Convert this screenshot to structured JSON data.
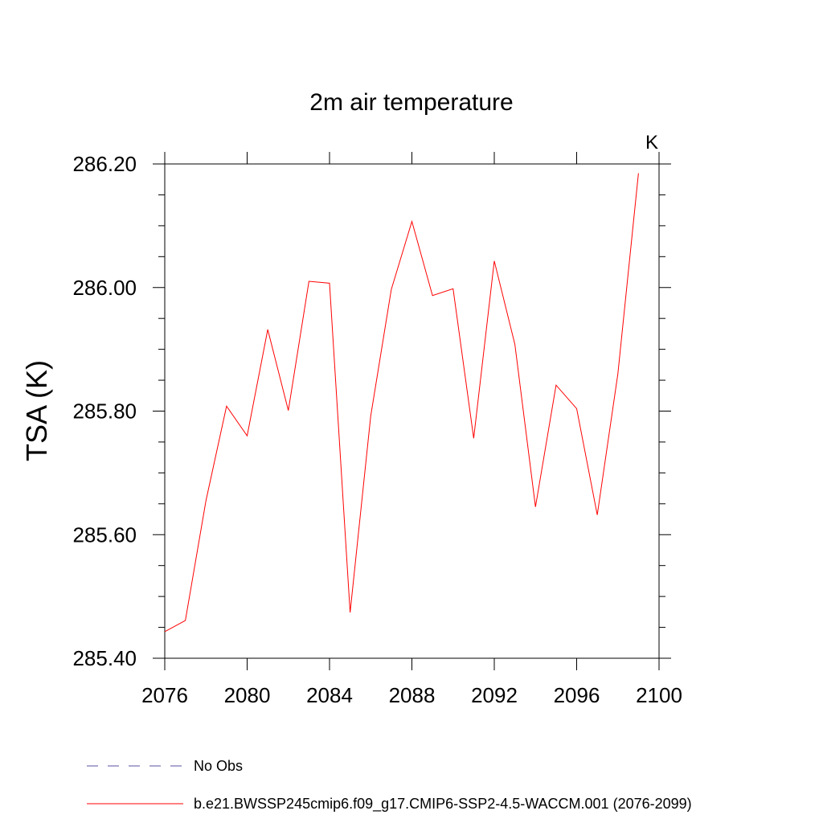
{
  "chart_data": {
    "type": "line",
    "title": "2m air temperature",
    "units_label": "K",
    "ylabel": "TSA  (K)",
    "xlabel": "",
    "xlim": [
      2076,
      2100
    ],
    "ylim": [
      285.4,
      286.2
    ],
    "x_ticks": [
      2076,
      2080,
      2084,
      2088,
      2092,
      2096,
      2100
    ],
    "x_tick_labels": [
      "2076",
      "2080",
      "2084",
      "2088",
      "2092",
      "2096",
      "2100"
    ],
    "y_ticks": [
      285.4,
      285.6,
      285.8,
      286.0,
      286.2
    ],
    "y_tick_labels": [
      "285.40",
      "285.60",
      "285.80",
      "286.00",
      "286.20"
    ],
    "x_minor_step": 1,
    "y_minor_step": 0.05,
    "grid": false,
    "legend_position": "bottom-left",
    "series": [
      {
        "name": "No Obs",
        "style": "dashed",
        "color": "#5a4fa0",
        "x": [],
        "values": []
      },
      {
        "name": "b.e21.BWSSP245cmip6.f09_g17.CMIP6-SSP2-4.5-WACCM.001 (2076-2099)",
        "style": "solid",
        "color": "#ff0000",
        "x": [
          2076,
          2077,
          2078,
          2079,
          2080,
          2081,
          2082,
          2083,
          2084,
          2085,
          2086,
          2087,
          2088,
          2089,
          2090,
          2091,
          2092,
          2093,
          2094,
          2095,
          2096,
          2097,
          2098,
          2099
        ],
        "values": [
          285.443,
          285.461,
          285.655,
          285.808,
          285.76,
          285.932,
          285.801,
          286.01,
          286.007,
          285.474,
          285.792,
          285.997,
          286.107,
          285.987,
          285.998,
          285.756,
          286.043,
          285.908,
          285.645,
          285.842,
          285.804,
          285.632,
          285.86,
          286.185
        ]
      }
    ]
  }
}
